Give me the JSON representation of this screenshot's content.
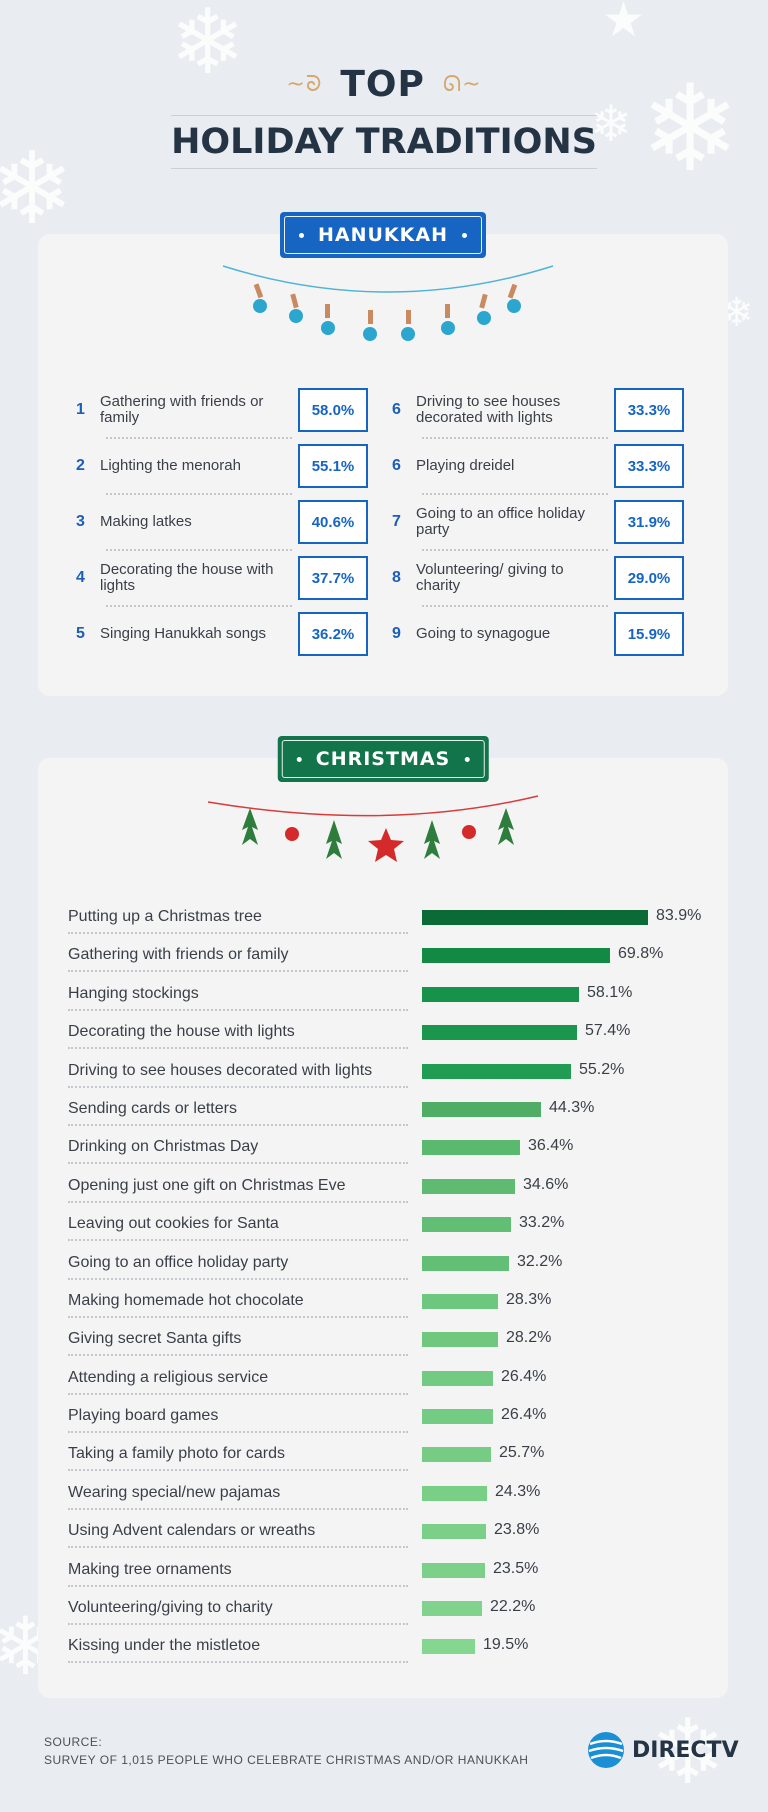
{
  "header": {
    "title_line1": "TOP",
    "title_line2": "HOLIDAY TRADITIONS"
  },
  "hanukkah": {
    "banner": "HANUKKAH",
    "color": "#1665c3",
    "items": [
      {
        "rank": "1",
        "label": "Gathering with friends or family",
        "value": "58.0%"
      },
      {
        "rank": "2",
        "label": "Lighting the menorah",
        "value": "55.1%"
      },
      {
        "rank": "3",
        "label": "Making latkes",
        "value": "40.6%"
      },
      {
        "rank": "4",
        "label": "Decorating the house with lights",
        "value": "37.7%"
      },
      {
        "rank": "5",
        "label": "Singing Hanukkah songs",
        "value": "36.2%"
      },
      {
        "rank": "6",
        "label": "Driving to see houses decorated with lights",
        "value": "33.3%"
      },
      {
        "rank": "6",
        "label": "Playing dreidel",
        "value": "33.3%"
      },
      {
        "rank": "7",
        "label": "Going to an office holiday party",
        "value": "31.9%"
      },
      {
        "rank": "8",
        "label": "Volunteering/ giving to charity",
        "value": "29.0%"
      },
      {
        "rank": "9",
        "label": "Going to synagogue",
        "value": "15.9%"
      }
    ]
  },
  "christmas": {
    "banner": "CHRISTMAS",
    "color": "#12744a"
  },
  "chart_data": {
    "type": "bar",
    "orientation": "horizontal",
    "categories": [
      "Putting up a Christmas tree",
      "Gathering with friends or family",
      "Hanging stockings",
      "Decorating the house with lights",
      "Driving to see houses decorated with lights",
      "Sending cards or letters",
      "Drinking on Christmas Day",
      "Opening just one gift on Christmas Eve",
      "Leaving out cookies for Santa",
      "Going to an office holiday party",
      "Making homemade hot chocolate",
      "Giving secret Santa gifts",
      "Attending a religious service",
      "Playing board games",
      "Taking a family photo for cards",
      "Wearing special/new pajamas",
      "Using Advent calendars or wreaths",
      "Making tree ornaments",
      "Volunteering/giving to charity",
      "Kissing under the mistletoe"
    ],
    "values": [
      83.9,
      69.8,
      58.1,
      57.4,
      55.2,
      44.3,
      36.4,
      34.6,
      33.2,
      32.2,
      28.3,
      28.2,
      26.4,
      26.4,
      25.7,
      24.3,
      23.8,
      23.5,
      22.2,
      19.5
    ],
    "value_labels": [
      "83.9%",
      "69.8%",
      "58.1%",
      "57.4%",
      "55.2%",
      "44.3%",
      "36.4%",
      "34.6%",
      "33.2%",
      "32.2%",
      "28.3%",
      "28.2%",
      "26.4%",
      "26.4%",
      "25.7%",
      "24.3%",
      "23.8%",
      "23.5%",
      "22.2%",
      "19.5%"
    ],
    "colors": [
      "#0a6b37",
      "#138a44",
      "#17924a",
      "#1a964d",
      "#219c53",
      "#4fad65",
      "#5bb86f",
      "#5fbb72",
      "#62be74",
      "#64bf76",
      "#6ec77e",
      "#70c87f",
      "#73ca82",
      "#74cb83",
      "#76cc84",
      "#7acf87",
      "#7bcf88",
      "#7cd089",
      "#80d28c",
      "#85d690"
    ],
    "xlim": [
      0,
      100
    ]
  },
  "footer": {
    "source_label": "SOURCE:",
    "source_text": "SURVEY OF 1,015 PEOPLE WHO CELEBRATE CHRISTMAS AND/OR HANUKKAH"
  },
  "logo": {
    "text": "DIRECTV"
  }
}
